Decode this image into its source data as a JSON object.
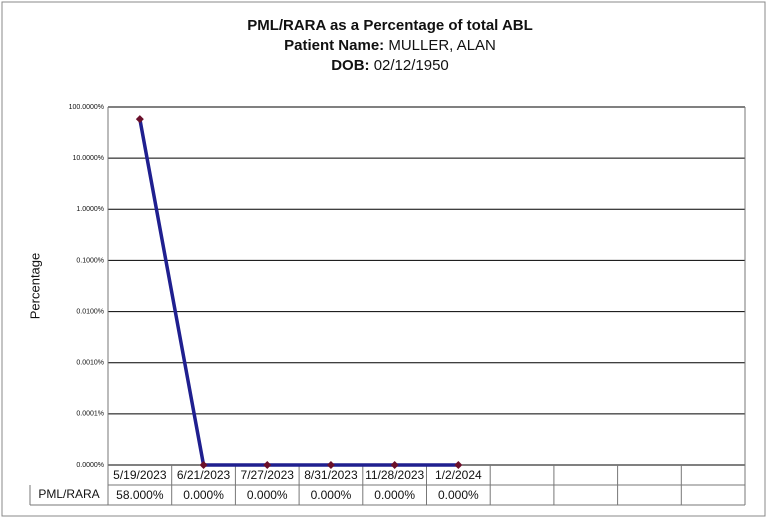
{
  "chart_data": {
    "type": "line",
    "title": "PML/RARA as a Percentage of total ABL",
    "patient_label": "Patient Name:",
    "patient_name": "MULLER, ALAN",
    "dob_label": "DOB:",
    "dob": "02/12/1950",
    "y_label": "Percentage",
    "log_scale": true,
    "grid": true,
    "categories": [
      "5/19/2023",
      "6/21/2023",
      "7/27/2023",
      "8/31/2023",
      "11/28/2023",
      "1/2/2024",
      null,
      null,
      null,
      null
    ],
    "series": [
      {
        "name": "PML/RARA",
        "color": "#1f1f8f",
        "marker_color": "#6a0f2a",
        "values": [
          58,
          0,
          0,
          0,
          0,
          0,
          null,
          null,
          null,
          null
        ],
        "value_labels": [
          "58.000%",
          "0.000%",
          "0.000%",
          "0.000%",
          "0.000%",
          "0.000%",
          null,
          null,
          null,
          null
        ]
      }
    ],
    "ylim": [
      1e-05,
      100
    ],
    "yticks": [
      {
        "value": 100,
        "label": "100.0000%"
      },
      {
        "value": 10,
        "label": "10.0000%"
      },
      {
        "value": 1,
        "label": "1.0000%"
      },
      {
        "value": 0.1,
        "label": "0.1000%"
      },
      {
        "value": 0.01,
        "label": "0.0100%"
      },
      {
        "value": 0.001,
        "label": "0.0010%"
      },
      {
        "value": 0.0001,
        "label": "0.0001%"
      },
      {
        "value": 1e-05,
        "label": "0.0000%"
      }
    ]
  }
}
